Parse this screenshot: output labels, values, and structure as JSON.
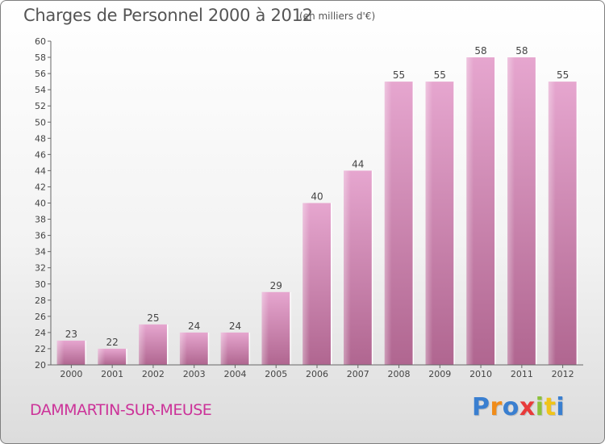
{
  "header": {
    "title": "Charges de Personnel 2000 à 2012",
    "subtitle": "(en milliers d'€)"
  },
  "footer": {
    "commune": "DAMMARTIN-SUR-MEUSE",
    "logo_text": "Proxiti",
    "logo_colors": [
      "#3a7fd0",
      "#f08c1a",
      "#3a7fd0",
      "#e83a3a",
      "#8cc23a",
      "#f0c41a",
      "#3a7fd0"
    ]
  },
  "chart_data": {
    "type": "bar",
    "title": "Charges de Personnel 2000 à 2012",
    "subtitle": "(en milliers d'€)",
    "categories": [
      "2000",
      "2001",
      "2002",
      "2003",
      "2004",
      "2005",
      "2006",
      "2007",
      "2008",
      "2009",
      "2010",
      "2011",
      "2012"
    ],
    "values": [
      23,
      22,
      25,
      24,
      24,
      29,
      40,
      44,
      55,
      55,
      58,
      58,
      55
    ],
    "ylim": [
      20,
      60
    ],
    "ytick_step": 2,
    "grid": false,
    "bar_color_top": "#e6a6cf",
    "bar_color_bottom": "#b06690",
    "axis_color": "#666666",
    "text_color": "#444444"
  }
}
